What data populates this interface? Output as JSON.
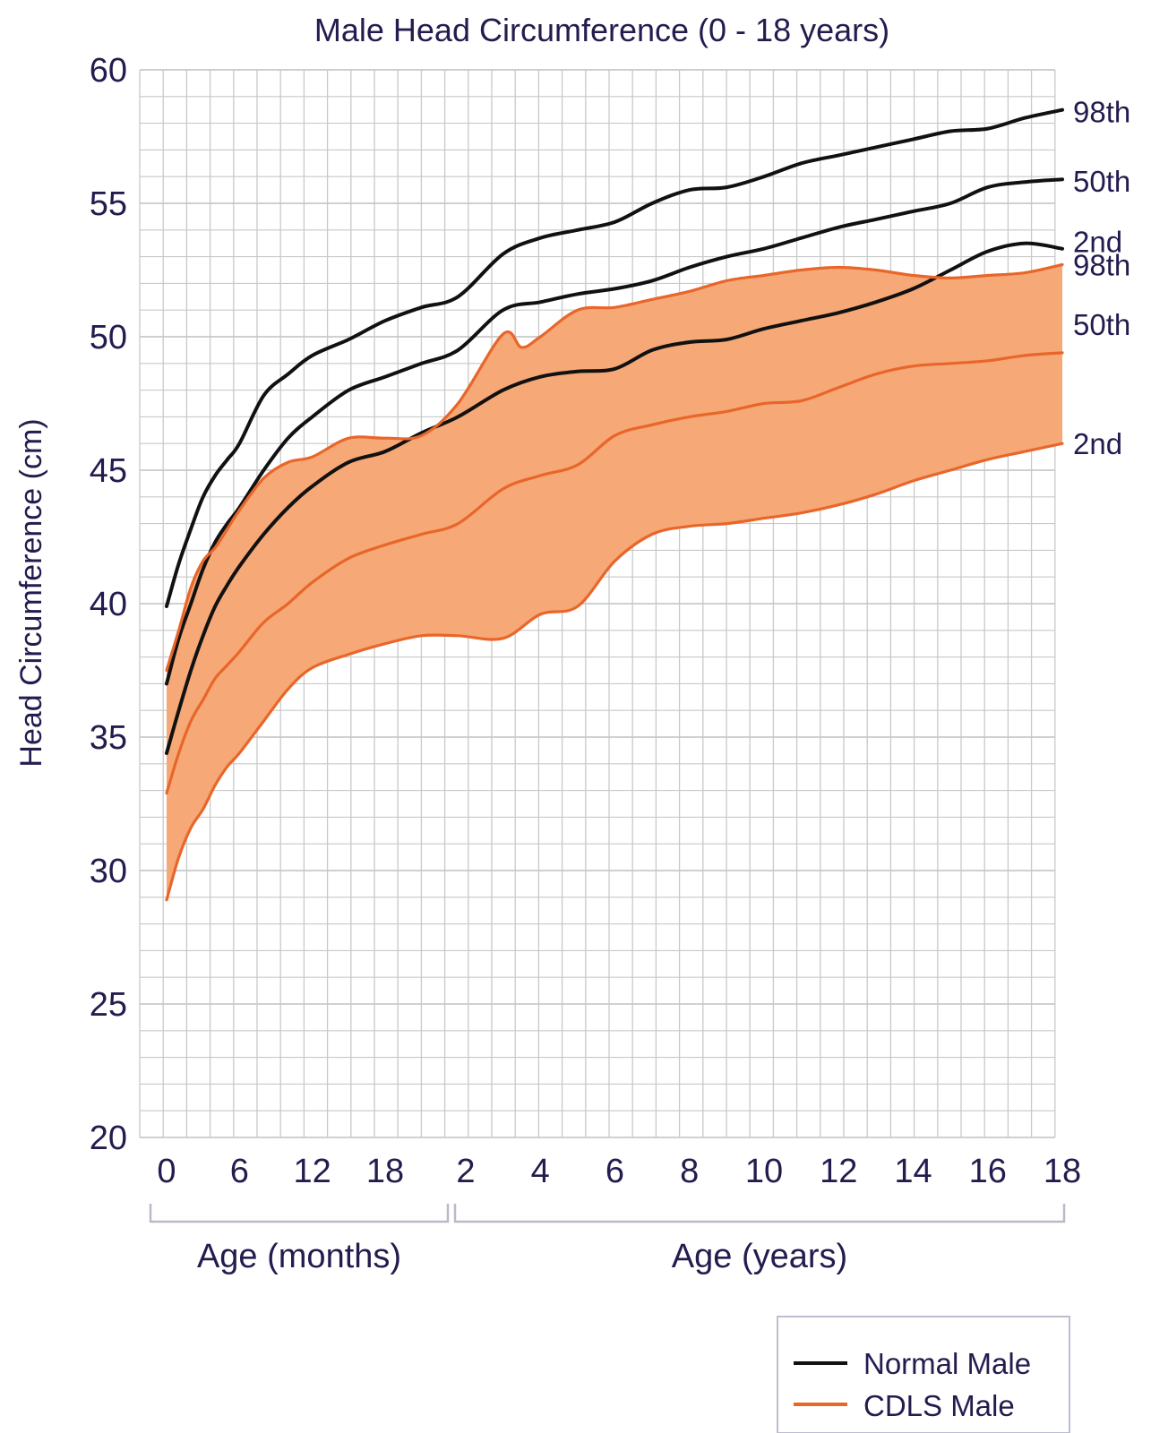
{
  "chart_data": {
    "type": "line",
    "title": "Male Head Circumference (0 - 18 years)",
    "ylabel": "Head Circumference (cm)",
    "ylim": [
      20,
      60
    ],
    "y_ticks": [
      "20",
      "25",
      "30",
      "35",
      "40",
      "45",
      "50",
      "55",
      "60"
    ],
    "x_ticks": [
      "0",
      "6",
      "12",
      "18",
      "2",
      "4",
      "6",
      "8",
      "10",
      "12",
      "14",
      "16",
      "18"
    ],
    "x_groups": [
      {
        "label": "Age (months)",
        "range": [
          "0 months",
          "24 months"
        ]
      },
      {
        "label": "Age (years)",
        "range": [
          "2 years",
          "18 years"
        ]
      }
    ],
    "grid": true,
    "colors": {
      "normal": "#111111",
      "cdls": "#e8662a",
      "band": "#f6a876",
      "text": "#241b4e",
      "grid": "#c9c9c9"
    },
    "legend": {
      "position": "bottom-right",
      "entries": [
        {
          "label": "Normal Male",
          "color": "#111111"
        },
        {
          "label": "CDLS Male",
          "color": "#e8662a"
        }
      ]
    },
    "series": [
      {
        "name": "Normal Male",
        "percentile": "98th",
        "points": [
          [
            "0m",
            39.9
          ],
          [
            "1m",
            41.5
          ],
          [
            "2m",
            42.8
          ],
          [
            "3m",
            44.0
          ],
          [
            "4m",
            44.8
          ],
          [
            "5m",
            45.4
          ],
          [
            "6m",
            46.0
          ],
          [
            "8m",
            47.8
          ],
          [
            "10m",
            48.6
          ],
          [
            "12m",
            49.3
          ],
          [
            "15m",
            49.9
          ],
          [
            "18m",
            50.6
          ],
          [
            "21m",
            51.1
          ],
          [
            "24m",
            51.5
          ],
          [
            "3y",
            53.1
          ],
          [
            "4y",
            53.7
          ],
          [
            "5y",
            54.0
          ],
          [
            "6y",
            54.3
          ],
          [
            "7y",
            55.0
          ],
          [
            "8y",
            55.5
          ],
          [
            "9y",
            55.6
          ],
          [
            "10y",
            56.0
          ],
          [
            "11y",
            56.5
          ],
          [
            "12y",
            56.8
          ],
          [
            "13y",
            57.1
          ],
          [
            "14y",
            57.4
          ],
          [
            "15y",
            57.7
          ],
          [
            "16y",
            57.8
          ],
          [
            "17y",
            58.2
          ],
          [
            "18y",
            58.5
          ]
        ]
      },
      {
        "name": "Normal Male",
        "percentile": "50th",
        "points": [
          [
            "0m",
            37.0
          ],
          [
            "1m",
            38.7
          ],
          [
            "2m",
            40.0
          ],
          [
            "3m",
            41.3
          ],
          [
            "4m",
            42.3
          ],
          [
            "5m",
            43.0
          ],
          [
            "6m",
            43.6
          ],
          [
            "8m",
            45.0
          ],
          [
            "10m",
            46.2
          ],
          [
            "12m",
            47.0
          ],
          [
            "15m",
            48.0
          ],
          [
            "18m",
            48.5
          ],
          [
            "21m",
            49.0
          ],
          [
            "24m",
            49.5
          ],
          [
            "3y",
            51.0
          ],
          [
            "4y",
            51.3
          ],
          [
            "5y",
            51.6
          ],
          [
            "6y",
            51.8
          ],
          [
            "7y",
            52.1
          ],
          [
            "8y",
            52.6
          ],
          [
            "9y",
            53.0
          ],
          [
            "10y",
            53.3
          ],
          [
            "11y",
            53.7
          ],
          [
            "12y",
            54.1
          ],
          [
            "13y",
            54.4
          ],
          [
            "14y",
            54.7
          ],
          [
            "15y",
            55.0
          ],
          [
            "16y",
            55.6
          ],
          [
            "17y",
            55.8
          ],
          [
            "18y",
            55.9
          ]
        ]
      },
      {
        "name": "Normal Male",
        "percentile": "2nd",
        "points": [
          [
            "0m",
            34.4
          ],
          [
            "1m",
            36.0
          ],
          [
            "2m",
            37.5
          ],
          [
            "3m",
            38.8
          ],
          [
            "4m",
            39.9
          ],
          [
            "5m",
            40.7
          ],
          [
            "6m",
            41.4
          ],
          [
            "8m",
            42.6
          ],
          [
            "10m",
            43.6
          ],
          [
            "12m",
            44.4
          ],
          [
            "15m",
            45.3
          ],
          [
            "18m",
            45.7
          ],
          [
            "21m",
            46.4
          ],
          [
            "24m",
            47.0
          ],
          [
            "3y",
            48.0
          ],
          [
            "4y",
            48.5
          ],
          [
            "5y",
            48.7
          ],
          [
            "6y",
            48.8
          ],
          [
            "7y",
            49.5
          ],
          [
            "8y",
            49.8
          ],
          [
            "9y",
            49.9
          ],
          [
            "10y",
            50.3
          ],
          [
            "11y",
            50.6
          ],
          [
            "12y",
            50.9
          ],
          [
            "13y",
            51.3
          ],
          [
            "14y",
            51.8
          ],
          [
            "15y",
            52.5
          ],
          [
            "16y",
            53.2
          ],
          [
            "17y",
            53.5
          ],
          [
            "18y",
            53.3
          ]
        ]
      },
      {
        "name": "CDLS Male",
        "percentile": "98th",
        "points": [
          [
            "0m",
            37.5
          ],
          [
            "1m",
            39.0
          ],
          [
            "2m",
            40.6
          ],
          [
            "3m",
            41.6
          ],
          [
            "4m",
            42.1
          ],
          [
            "5m",
            42.8
          ],
          [
            "6m",
            43.5
          ],
          [
            "8m",
            44.7
          ],
          [
            "10m",
            45.3
          ],
          [
            "12m",
            45.5
          ],
          [
            "15m",
            46.2
          ],
          [
            "18m",
            46.2
          ],
          [
            "21m",
            46.3
          ],
          [
            "24m",
            47.5
          ],
          [
            "3y",
            50.1
          ],
          [
            "3.5y",
            49.6
          ],
          [
            "4y",
            50.0
          ],
          [
            "5y",
            51.0
          ],
          [
            "6y",
            51.1
          ],
          [
            "7y",
            51.4
          ],
          [
            "8y",
            51.7
          ],
          [
            "9y",
            52.1
          ],
          [
            "10y",
            52.3
          ],
          [
            "11y",
            52.5
          ],
          [
            "12y",
            52.6
          ],
          [
            "13y",
            52.5
          ],
          [
            "14y",
            52.3
          ],
          [
            "15y",
            52.2
          ],
          [
            "16y",
            52.3
          ],
          [
            "17y",
            52.4
          ],
          [
            "18y",
            52.7
          ]
        ]
      },
      {
        "name": "CDLS Male",
        "percentile": "50th",
        "points": [
          [
            "0m",
            32.9
          ],
          [
            "1m",
            34.4
          ],
          [
            "2m",
            35.6
          ],
          [
            "3m",
            36.4
          ],
          [
            "4m",
            37.2
          ],
          [
            "5m",
            37.7
          ],
          [
            "6m",
            38.2
          ],
          [
            "8m",
            39.3
          ],
          [
            "10m",
            40.0
          ],
          [
            "12m",
            40.8
          ],
          [
            "15m",
            41.7
          ],
          [
            "18m",
            42.2
          ],
          [
            "21m",
            42.6
          ],
          [
            "24m",
            43.0
          ],
          [
            "3y",
            44.3
          ],
          [
            "4y",
            44.8
          ],
          [
            "5y",
            45.2
          ],
          [
            "6y",
            46.3
          ],
          [
            "7y",
            46.7
          ],
          [
            "8y",
            47.0
          ],
          [
            "9y",
            47.2
          ],
          [
            "10y",
            47.5
          ],
          [
            "11y",
            47.6
          ],
          [
            "12y",
            48.1
          ],
          [
            "13y",
            48.6
          ],
          [
            "14y",
            48.9
          ],
          [
            "15y",
            49.0
          ],
          [
            "16y",
            49.1
          ],
          [
            "17y",
            49.3
          ],
          [
            "18y",
            49.4
          ]
        ]
      },
      {
        "name": "CDLS Male",
        "percentile": "2nd",
        "points": [
          [
            "0m",
            28.9
          ],
          [
            "1m",
            30.5
          ],
          [
            "2m",
            31.6
          ],
          [
            "3m",
            32.3
          ],
          [
            "4m",
            33.2
          ],
          [
            "5m",
            33.9
          ],
          [
            "6m",
            34.4
          ],
          [
            "8m",
            35.6
          ],
          [
            "10m",
            36.8
          ],
          [
            "12m",
            37.6
          ],
          [
            "15m",
            38.1
          ],
          [
            "18m",
            38.5
          ],
          [
            "21m",
            38.8
          ],
          [
            "24m",
            38.8
          ],
          [
            "3y",
            38.7
          ],
          [
            "4y",
            39.6
          ],
          [
            "5y",
            39.9
          ],
          [
            "6y",
            41.6
          ],
          [
            "7y",
            42.6
          ],
          [
            "8y",
            42.9
          ],
          [
            "9y",
            43.0
          ],
          [
            "10y",
            43.2
          ],
          [
            "11y",
            43.4
          ],
          [
            "12y",
            43.7
          ],
          [
            "13y",
            44.1
          ],
          [
            "14y",
            44.6
          ],
          [
            "15y",
            45.0
          ],
          [
            "16y",
            45.4
          ],
          [
            "17y",
            45.7
          ],
          [
            "18y",
            46.0
          ]
        ]
      }
    ],
    "normal_labels": [
      "98th",
      "50th",
      "2nd"
    ],
    "cdls_labels": [
      "98th",
      "50th",
      "2nd"
    ]
  }
}
